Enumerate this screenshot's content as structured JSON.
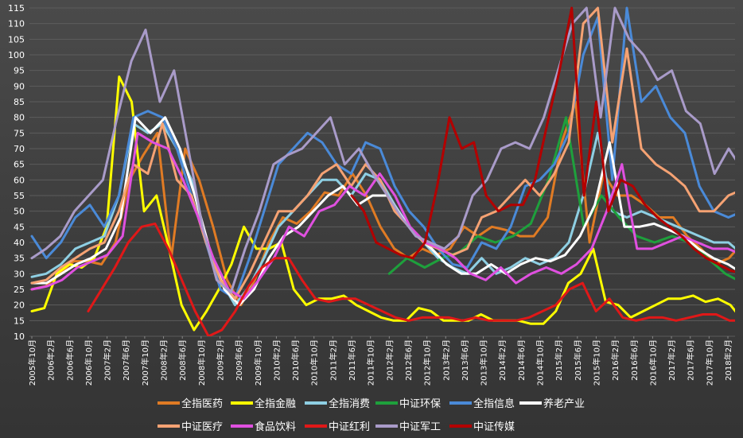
{
  "chart_data": {
    "type": "line",
    "title": "",
    "xlabel": "",
    "ylabel": "",
    "ylim": [
      10,
      115
    ],
    "yticks": [
      10,
      15,
      20,
      25,
      30,
      35,
      40,
      45,
      50,
      55,
      60,
      65,
      70,
      75,
      80,
      85,
      90,
      95,
      100,
      105,
      110,
      115
    ],
    "grid": true,
    "legend_position": "bottom",
    "x_tick_labels": [
      "2005年10月",
      "2006年2月",
      "2006年6月",
      "2006年10月",
      "2007年2月",
      "2007年6月",
      "2007年10月",
      "2008年2月",
      "2008年6月",
      "2008年10月",
      "2009年2月",
      "2009年6月",
      "2009年10月",
      "2010年2月",
      "2010年6月",
      "2010年10月",
      "2011年2月",
      "2011年6月",
      "2011年10月",
      "2012年2月",
      "2012年6月",
      "2012年10月",
      "2013年2月",
      "2013年6月",
      "2013年10月",
      "2014年2月",
      "2014年6月",
      "2014年10月",
      "2015年2月",
      "2015年6月",
      "2015年10月",
      "2016年2月",
      "2016年6月",
      "2016年10月",
      "2017年2月",
      "2017年6月",
      "2017年10月",
      "2018年2月"
    ],
    "x_months_per_tick": 4,
    "series": [
      {
        "name": "全指医药",
        "color": "#e07b24",
        "start_tick": 0,
        "values": [
          25,
          26,
          30,
          34,
          34,
          33,
          40,
          60,
          68,
          75,
          35,
          70,
          60,
          45,
          28,
          20,
          28,
          40,
          48,
          46,
          50,
          56,
          55,
          62,
          55,
          45,
          38,
          35,
          38,
          36,
          38,
          45,
          42,
          45,
          44,
          42,
          42,
          48,
          72,
          85,
          40,
          62,
          55,
          55,
          52,
          48,
          48,
          42,
          38,
          33,
          35,
          40
        ]
      },
      {
        "name": "全指金融",
        "color": "#ffff00",
        "start_tick": 0,
        "values": [
          18,
          19,
          30,
          33,
          32,
          35,
          45,
          93,
          85,
          50,
          55,
          38,
          20,
          12,
          18,
          25,
          33,
          45,
          38,
          38,
          40,
          25,
          20,
          22,
          22,
          23,
          20,
          18,
          16,
          15,
          15,
          19,
          18,
          15,
          15,
          15,
          17,
          15,
          15,
          15,
          14,
          14,
          18,
          27,
          30,
          38,
          21,
          20,
          16,
          18,
          20,
          22,
          22,
          23,
          21,
          22,
          20,
          15
        ]
      },
      {
        "name": "全指消费",
        "color": "#8ecfe3",
        "start_tick": 0,
        "values": [
          29,
          30,
          33,
          38,
          40,
          42,
          55,
          78,
          75,
          78,
          70,
          60,
          40,
          28,
          20,
          26,
          35,
          45,
          50,
          55,
          60,
          60,
          55,
          62,
          60,
          52,
          45,
          40,
          35,
          32,
          30,
          35,
          30,
          32,
          35,
          33,
          35,
          40,
          55,
          75,
          50,
          48,
          50,
          48,
          46,
          44,
          42,
          40,
          40,
          36
        ]
      },
      {
        "name": "中证环保",
        "color": "#1ea03c",
        "start_tick": 19,
        "values": [
          30,
          35,
          32,
          35,
          37,
          42,
          40,
          42,
          46,
          60,
          80,
          45,
          55,
          48,
          42,
          40,
          42,
          40,
          35,
          30,
          27
        ]
      },
      {
        "name": "全指信息",
        "color": "#4a8ad8",
        "start_tick": 0,
        "values": [
          42,
          35,
          40,
          48,
          52,
          45,
          55,
          80,
          82,
          80,
          70,
          55,
          40,
          25,
          22,
          35,
          50,
          65,
          70,
          75,
          72,
          65,
          62,
          72,
          70,
          58,
          50,
          45,
          38,
          33,
          32,
          40,
          38,
          45,
          58,
          60,
          65,
          75,
          100,
          112,
          60,
          115,
          85,
          90,
          80,
          75,
          58,
          50,
          48,
          50
        ]
      },
      {
        "name": "养老产业",
        "color": "#ffffff",
        "start_tick": 0,
        "values": [
          27,
          27,
          30,
          33,
          35,
          38,
          48,
          80,
          75,
          80,
          70,
          55,
          38,
          25,
          20,
          25,
          35,
          42,
          45,
          50,
          55,
          58,
          52,
          55,
          55,
          48,
          42,
          38,
          33,
          30,
          30,
          33,
          30,
          33,
          35,
          34,
          36,
          42,
          52,
          72,
          45,
          45,
          46,
          44,
          42,
          38,
          35,
          33,
          30
        ]
      },
      {
        "name": "中证医疗",
        "color": "#f5a273",
        "start_tick": 0,
        "values": [
          27,
          28,
          32,
          35,
          38,
          40,
          50,
          65,
          62,
          78,
          60,
          55,
          40,
          28,
          22,
          30,
          40,
          50,
          50,
          55,
          62,
          65,
          58,
          65,
          60,
          50,
          45,
          40,
          38,
          36,
          38,
          48,
          50,
          55,
          60,
          55,
          62,
          72,
          110,
          115,
          72,
          102,
          70,
          65,
          62,
          58,
          50,
          50,
          55,
          57
        ]
      },
      {
        "name": "食品饮料",
        "color": "#e050e0",
        "start_tick": 0,
        "values": [
          25,
          26,
          28,
          32,
          34,
          36,
          42,
          75,
          72,
          70,
          60,
          48,
          35,
          25,
          22,
          28,
          35,
          45,
          42,
          50,
          52,
          58,
          55,
          62,
          55,
          45,
          40,
          38,
          35,
          30,
          28,
          32,
          27,
          30,
          32,
          30,
          33,
          38,
          50,
          65,
          38,
          38,
          40,
          42,
          40,
          38,
          38,
          36
        ]
      },
      {
        "name": "中证红利",
        "color": "#e01818",
        "start_tick": 3,
        "values": [
          18,
          25,
          32,
          40,
          45,
          46,
          38,
          28,
          18,
          10,
          12,
          18,
          26,
          32,
          35,
          35,
          28,
          22,
          21,
          22,
          22,
          20,
          18,
          16,
          15,
          16,
          16,
          16,
          15,
          16,
          15,
          15,
          15,
          16,
          18,
          20,
          25,
          27,
          18,
          22,
          16,
          15,
          16,
          16,
          15,
          16,
          17,
          17,
          15,
          15
        ]
      },
      {
        "name": "中证军工",
        "color": "#a99bc9",
        "start_tick": 0,
        "values": [
          35,
          38,
          42,
          50,
          55,
          60,
          80,
          98,
          108,
          85,
          95,
          70,
          45,
          28,
          24,
          38,
          50,
          65,
          68,
          70,
          75,
          80,
          65,
          70,
          62,
          55,
          48,
          42,
          40,
          38,
          42,
          55,
          60,
          70,
          72,
          70,
          80,
          95,
          110,
          115,
          80,
          115,
          105,
          100,
          92,
          95,
          82,
          78,
          62,
          70,
          63
        ]
      },
      {
        "name": "中证传媒",
        "color": "#b30000",
        "start_tick": 17,
        "values": [
          55,
          50,
          40,
          38,
          36,
          35,
          40,
          58,
          80,
          70,
          72,
          55,
          50,
          52,
          52,
          60,
          78,
          95,
          115,
          55,
          85,
          50,
          60,
          58,
          52,
          48,
          45,
          42,
          38,
          35,
          33,
          31,
          30
        ]
      }
    ]
  }
}
